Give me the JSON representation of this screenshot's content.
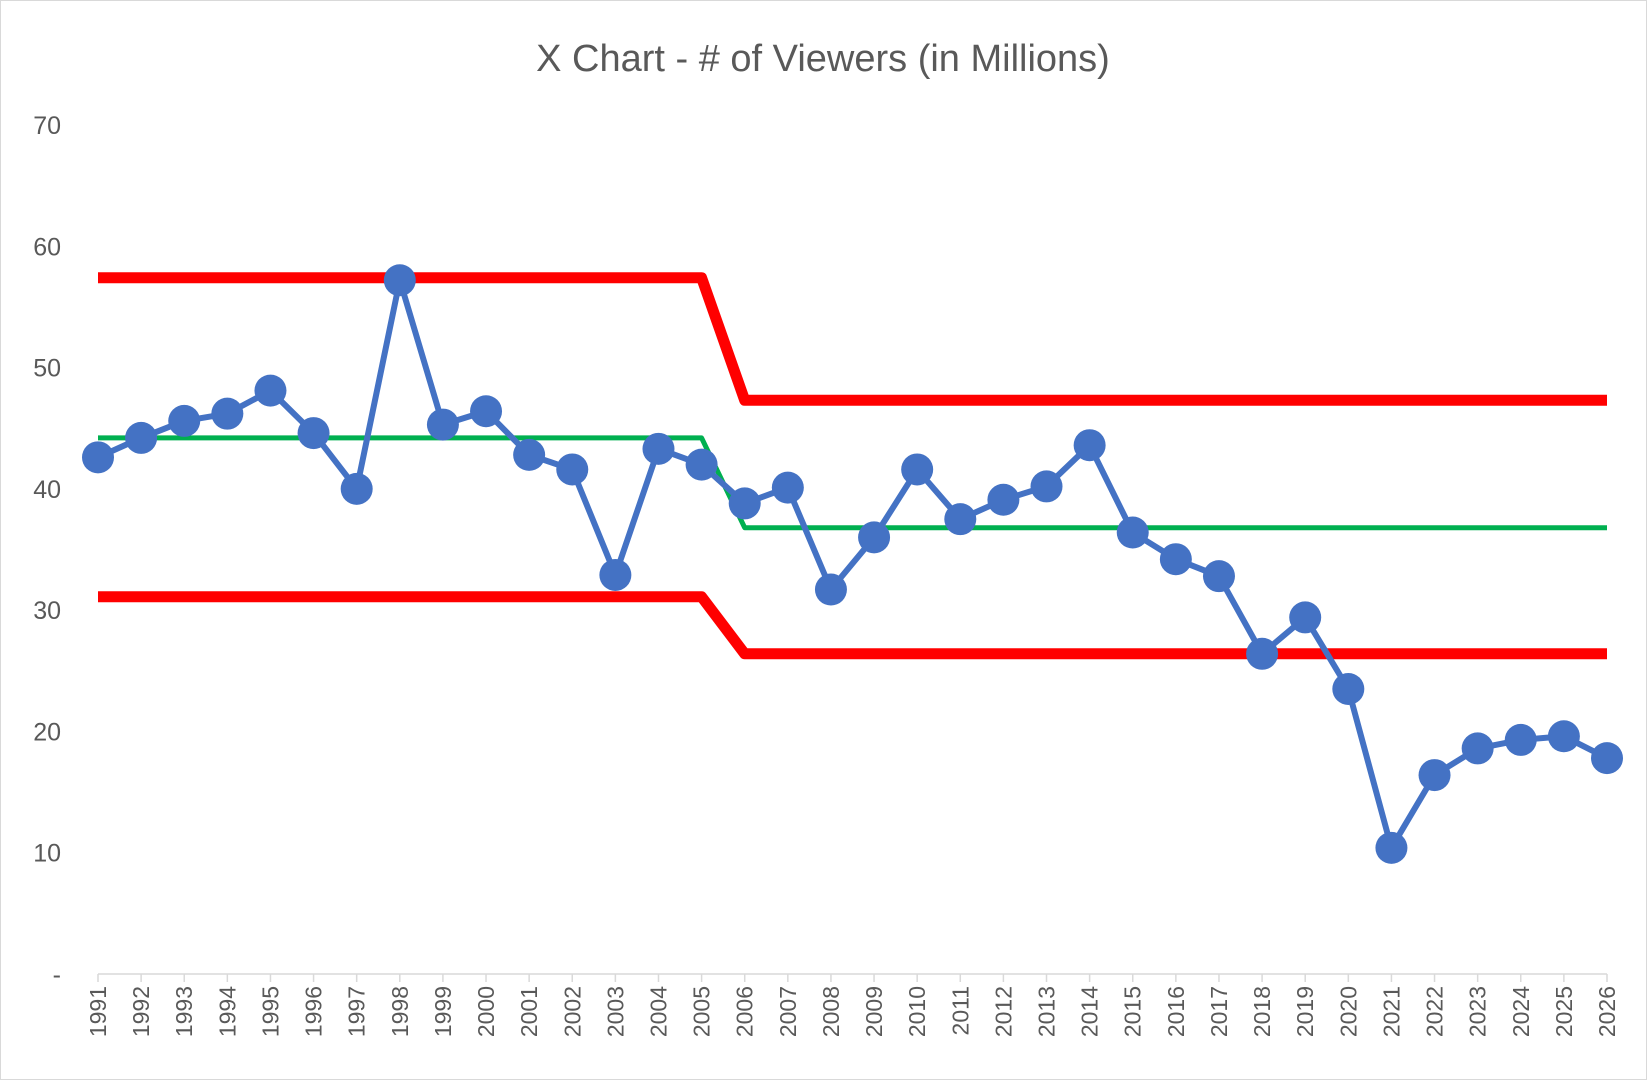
{
  "chart_data": {
    "type": "line",
    "title": "X Chart - # of Viewers (in Millions)",
    "xlabel": "",
    "ylabel": "",
    "ylim": [
      0,
      70
    ],
    "y_ticks": [
      {
        "value": 70,
        "label": "70"
      },
      {
        "value": 60,
        "label": "60"
      },
      {
        "value": 50,
        "label": "50"
      },
      {
        "value": 40,
        "label": "40"
      },
      {
        "value": 30,
        "label": "30"
      },
      {
        "value": 20,
        "label": "20"
      },
      {
        "value": 10,
        "label": "10"
      },
      {
        "value": 0,
        "label": "-"
      }
    ],
    "grid": false,
    "legend": "none",
    "categories": [
      "1991",
      "1992",
      "1993",
      "1994",
      "1995",
      "1996",
      "1997",
      "1998",
      "1999",
      "2000",
      "2001",
      "2002",
      "2003",
      "2004",
      "2005",
      "2006",
      "2007",
      "2008",
      "2009",
      "2010",
      "2011",
      "2012",
      "2013",
      "2014",
      "2015",
      "2016",
      "2017",
      "2018",
      "2019",
      "2020",
      "2021",
      "2022",
      "2023",
      "2024",
      "2025",
      "2026"
    ],
    "series": [
      {
        "role": "data",
        "color": "#4472c4",
        "markers": true,
        "values": [
          42.6,
          44.2,
          45.6,
          46.2,
          48.1,
          44.6,
          40.0,
          57.2,
          45.3,
          46.4,
          42.8,
          41.6,
          32.9,
          43.3,
          42.0,
          38.8,
          40.1,
          31.7,
          36.0,
          41.6,
          37.5,
          39.1,
          40.2,
          43.6,
          36.4,
          34.2,
          32.8,
          26.4,
          29.4,
          23.5,
          10.4,
          16.4,
          18.6,
          19.3,
          19.6,
          17.8
        ]
      },
      {
        "role": "upper-limit",
        "color": "#ff0000",
        "markers": false,
        "values": [
          57.4,
          57.4,
          57.4,
          57.4,
          57.4,
          57.4,
          57.4,
          57.4,
          57.4,
          57.4,
          57.4,
          57.4,
          57.4,
          57.4,
          57.4,
          47.3,
          47.3,
          47.3,
          47.3,
          47.3,
          47.3,
          47.3,
          47.3,
          47.3,
          47.3,
          47.3,
          47.3,
          47.3,
          47.3,
          47.3,
          47.3,
          47.3,
          47.3,
          47.3,
          47.3,
          47.3
        ]
      },
      {
        "role": "average",
        "color": "#00b050",
        "markers": false,
        "values": [
          44.2,
          44.2,
          44.2,
          44.2,
          44.2,
          44.2,
          44.2,
          44.2,
          44.2,
          44.2,
          44.2,
          44.2,
          44.2,
          44.2,
          44.2,
          36.8,
          36.8,
          36.8,
          36.8,
          36.8,
          36.8,
          36.8,
          36.8,
          36.8,
          36.8,
          36.8,
          36.8,
          36.8,
          36.8,
          36.8,
          36.8,
          36.8,
          36.8,
          36.8,
          36.8,
          36.8
        ]
      },
      {
        "role": "lower-limit",
        "color": "#ff0000",
        "markers": false,
        "values": [
          31.1,
          31.1,
          31.1,
          31.1,
          31.1,
          31.1,
          31.1,
          31.1,
          31.1,
          31.1,
          31.1,
          31.1,
          31.1,
          31.1,
          31.1,
          26.4,
          26.4,
          26.4,
          26.4,
          26.4,
          26.4,
          26.4,
          26.4,
          26.4,
          26.4,
          26.4,
          26.4,
          26.4,
          26.4,
          26.4,
          26.4,
          26.4,
          26.4,
          26.4,
          26.4,
          26.4
        ]
      }
    ]
  }
}
